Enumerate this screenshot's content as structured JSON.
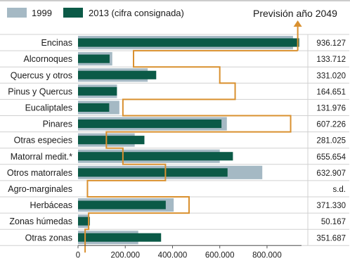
{
  "chart_data": {
    "type": "bar",
    "orientation": "horizontal",
    "categories": [
      "Encinas",
      "Alcornoques",
      "Quercus y otros",
      "Pinus y Quercus",
      "Eucaliptales",
      "Pinares",
      "Otras especies",
      "Matorral medit.*",
      "Otros matorrales",
      "Agro-marginales",
      "Herbáceas",
      "Zonas húmedas",
      "Otras zonas"
    ],
    "series": [
      {
        "name": "1999",
        "color": "#a5b9c4",
        "values": [
          910000,
          145000,
          295000,
          165000,
          175000,
          630000,
          240000,
          600000,
          780000,
          null,
          405000,
          45000,
          255000
        ]
      },
      {
        "name": "2013 (cifra consignada)",
        "color": "#0b5a47",
        "values": [
          936127,
          133712,
          331020,
          164651,
          131976,
          607226,
          281025,
          655654,
          632907,
          null,
          371330,
          50167,
          351687
        ]
      },
      {
        "name": "Previsión año 2049",
        "type": "step",
        "color": "#d9902f",
        "values": [
          930000,
          235000,
          600000,
          665000,
          190000,
          900000,
          120000,
          190000,
          370000,
          40000,
          470000,
          45000,
          30000
        ]
      }
    ],
    "value_labels": [
      "936.127",
      "133.712",
      "331.020",
      "164.651",
      "131.976",
      "607.226",
      "281.025",
      "655.654",
      "632.907",
      "s.d.",
      "371.330",
      "50.167",
      "351.687"
    ],
    "x_ticks": [
      0,
      200000,
      400000,
      600000,
      800000
    ],
    "x_tick_labels": [
      "0",
      "200.000",
      "400.000",
      "600.000",
      "800.000"
    ],
    "xlim": [
      0,
      940000
    ],
    "legend": {
      "placement": "top-left",
      "items": [
        "1999",
        "2013 (cifra consignada)"
      ]
    },
    "forecast_label": "Previsión año 2049",
    "gridlines": "horizontal-row-separators"
  }
}
